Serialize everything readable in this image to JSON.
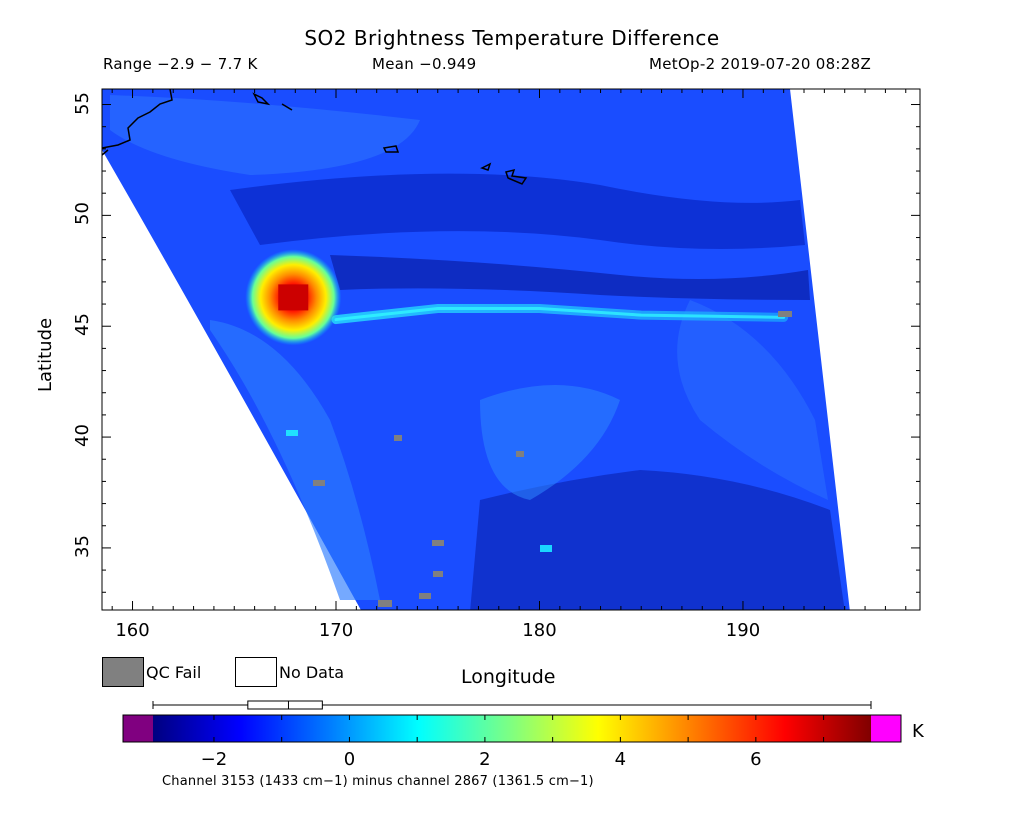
{
  "chart_data": {
    "type": "heatmap",
    "title": "SO2 Brightness Temperature Difference",
    "range_text": "Range −2.9 − 7.7 K",
    "mean_text": "Mean −0.949",
    "source_text": "MetOp-2 2019-07-20 08:28Z",
    "xlabel": "Longitude",
    "ylabel": "Latitude",
    "xlim": [
      158.5,
      198.7
    ],
    "ylim": [
      32.2,
      55.7
    ],
    "x_ticks": [
      "160",
      "170",
      "180",
      "190"
    ],
    "x_tick_values": [
      160,
      170,
      180,
      190
    ],
    "y_ticks": [
      "35",
      "40",
      "45",
      "50",
      "55"
    ],
    "y_tick_values": [
      35,
      40,
      45,
      50,
      55
    ],
    "plume_center": {
      "lon": 167.9,
      "lat": 46.3,
      "max_K": 7.7
    },
    "plume_trail": [
      {
        "lon": 170,
        "lat": 45.3
      },
      {
        "lon": 175,
        "lat": 45.8
      },
      {
        "lon": 180,
        "lat": 45.8
      },
      {
        "lon": 185,
        "lat": 45.5
      },
      {
        "lon": 192,
        "lat": 45.4
      }
    ],
    "legend": {
      "qc_fail": "QC Fail",
      "no_data": "No Data"
    },
    "colorbar": {
      "unit": "K",
      "min": -2.9,
      "max": 7.7,
      "ticks": [
        "−2",
        "0",
        "2",
        "4",
        "6"
      ],
      "tick_values": [
        -2,
        0,
        2,
        4,
        6
      ],
      "below_color": "#800080",
      "above_color": "#ff00ff",
      "boxplot": {
        "whisker_low": -2.9,
        "q1": -1.5,
        "median": -0.9,
        "q3": -0.4,
        "whisker_high": 7.7
      },
      "caption": "Channel 3153 (1433 cm−1) minus channel 2867 (1361.5 cm−1)"
    },
    "colors": {
      "qc_fail": "#808080",
      "no_data": "#ffffff"
    }
  }
}
